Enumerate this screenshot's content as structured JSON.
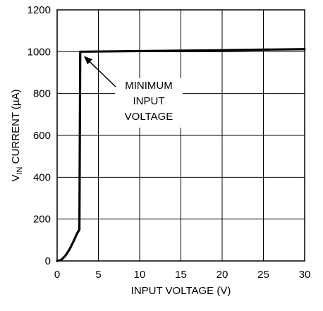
{
  "chart_data": {
    "type": "line",
    "title": "",
    "xlabel": "INPUT VOLTAGE (V)",
    "ylabel": {
      "main": "V",
      "subscript": "IN",
      "rest": " CURRENT (µA)"
    },
    "xlim": [
      0,
      30
    ],
    "ylim": [
      0,
      1200
    ],
    "x_ticks": [
      0,
      5,
      10,
      15,
      20,
      25,
      30
    ],
    "y_ticks": [
      0,
      200,
      400,
      600,
      800,
      1000,
      1200
    ],
    "x_tick_labels": [
      "0",
      "5",
      "10",
      "15",
      "20",
      "25",
      "30"
    ],
    "y_tick_labels": [
      "0",
      "200",
      "400",
      "600",
      "800",
      "1000",
      "1200"
    ],
    "grid": true,
    "series": [
      {
        "x": [
          0,
          0.5,
          1.0,
          1.5,
          2.0,
          2.4,
          2.7,
          2.8,
          3.0,
          5,
          10,
          15,
          20,
          25,
          30
        ],
        "y": [
          0,
          5,
          25,
          55,
          95,
          130,
          150,
          1000,
          1000,
          1001,
          1003,
          1005,
          1007,
          1010,
          1012
        ]
      }
    ],
    "annotations": [
      {
        "lines": [
          "MINIMUM",
          "INPUT",
          "VOLTAGE"
        ],
        "arrow_to": {
          "x": 2.9,
          "y": 1000
        }
      }
    ]
  }
}
